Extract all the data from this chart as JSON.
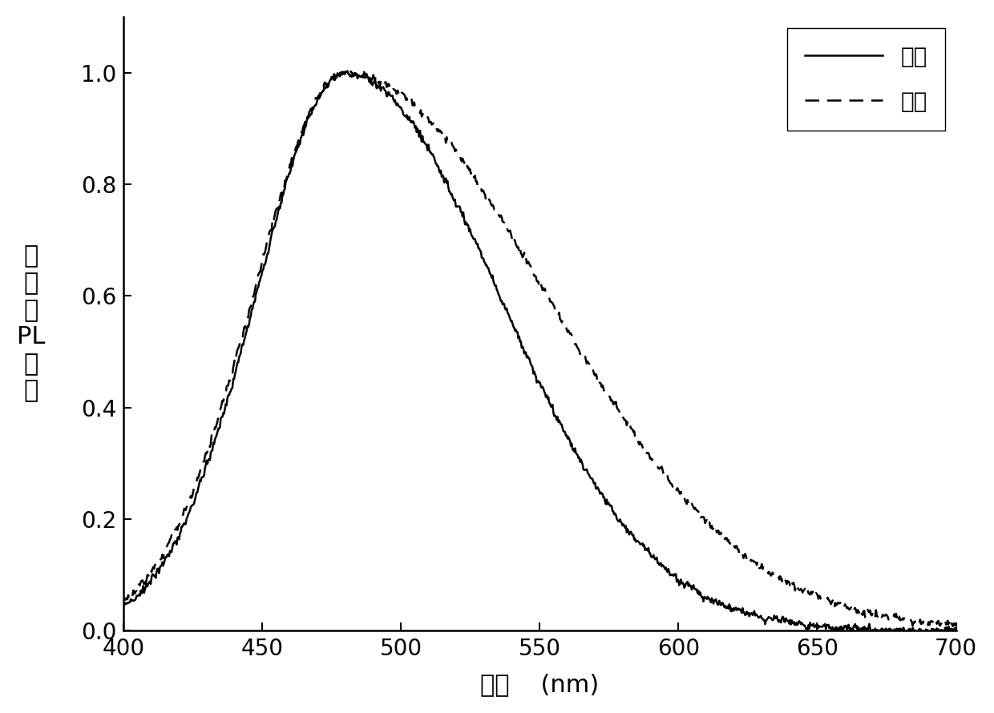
{
  "xlabel": "波长    (nm)",
  "ylabel_lines": [
    "归",
    "一",
    "化",
    "PL",
    "强",
    "度"
  ],
  "xlim": [
    400,
    700
  ],
  "ylim": [
    0.0,
    1.1
  ],
  "yticks": [
    0.0,
    0.2,
    0.4,
    0.6,
    0.8,
    1.0
  ],
  "xticks": [
    400,
    450,
    500,
    550,
    600,
    650,
    700
  ],
  "legend_solid": "快速",
  "legend_dashed": "延迟",
  "line_color": "#000000",
  "background_color": "#ffffff",
  "label_fontsize": 22,
  "tick_fontsize": 20,
  "legend_fontsize": 20
}
